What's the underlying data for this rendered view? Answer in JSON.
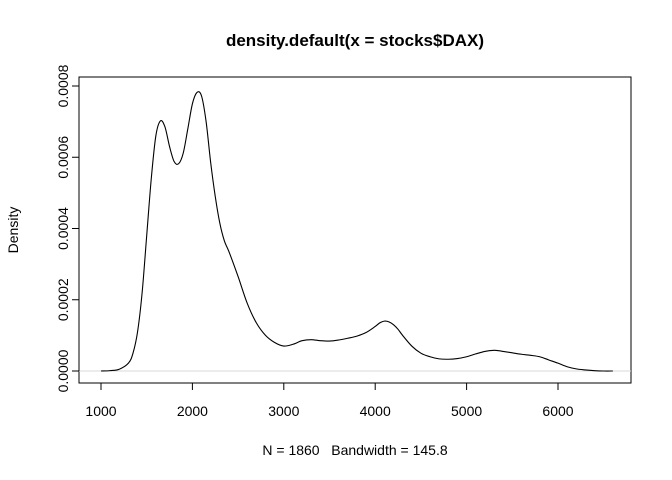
{
  "chart_data": {
    "type": "line",
    "title": "density.default(x = stocks$DAX)",
    "xlabel": "N = 1860   Bandwidth = 145.8",
    "ylabel": "Density",
    "xlim": [
      1000,
      6600
    ],
    "ylim": [
      0,
      0.0008
    ],
    "x_ticks": [
      1000,
      2000,
      3000,
      4000,
      5000,
      6000
    ],
    "x_tick_labels": [
      "1000",
      "2000",
      "3000",
      "4000",
      "5000",
      "6000"
    ],
    "y_ticks": [
      0,
      0.0002,
      0.0004,
      0.0006,
      0.0008
    ],
    "y_tick_labels": [
      "0.0000",
      "0.0002",
      "0.0004",
      "0.0006",
      "0.0008"
    ],
    "grid": false,
    "series": [
      {
        "x": [
          1000,
          1100,
          1200,
          1300,
          1350,
          1400,
          1450,
          1500,
          1550,
          1600,
          1650,
          1700,
          1750,
          1800,
          1850,
          1900,
          1950,
          2000,
          2050,
          2100,
          2150,
          2200,
          2250,
          2300,
          2350,
          2400,
          2500,
          2600,
          2700,
          2800,
          2900,
          3000,
          3100,
          3200,
          3300,
          3400,
          3500,
          3600,
          3700,
          3800,
          3900,
          4000,
          4050,
          4100,
          4150,
          4200,
          4250,
          4300,
          4400,
          4500,
          4600,
          4700,
          4800,
          4900,
          5000,
          5100,
          5200,
          5300,
          5350,
          5400,
          5500,
          5600,
          5700,
          5800,
          5900,
          6000,
          6100,
          6200,
          6300,
          6400,
          6500,
          6600
        ],
        "y": [
          0.0,
          1e-06,
          5e-06,
          2.2e-05,
          5e-05,
          0.00011,
          0.00022,
          0.00038,
          0.00054,
          0.00066,
          0.000702,
          0.000685,
          0.00063,
          0.000588,
          0.000582,
          0.000612,
          0.00068,
          0.00075,
          0.000782,
          0.000772,
          0.0007,
          0.000585,
          0.00049,
          0.000415,
          0.000365,
          0.000335,
          0.000265,
          0.00019,
          0.000135,
          0.0001,
          8e-05,
          7e-05,
          7.5e-05,
          8.5e-05,
          8.8e-05,
          8.5e-05,
          8.4e-05,
          8.7e-05,
          9.2e-05,
          9.8e-05,
          0.000108,
          0.000125,
          0.000135,
          0.00014,
          0.000138,
          0.00013,
          0.000117,
          0.0001,
          7e-05,
          5e-05,
          4e-05,
          3.4e-05,
          3.3e-05,
          3.5e-05,
          4e-05,
          4.8e-05,
          5.5e-05,
          5.8e-05,
          5.7e-05,
          5.5e-05,
          5.1e-05,
          4.7e-05,
          4.4e-05,
          4e-05,
          3.1e-05,
          2.2e-05,
          1.2e-05,
          6e-06,
          3e-06,
          1e-06,
          0.0,
          0.0
        ]
      }
    ]
  }
}
